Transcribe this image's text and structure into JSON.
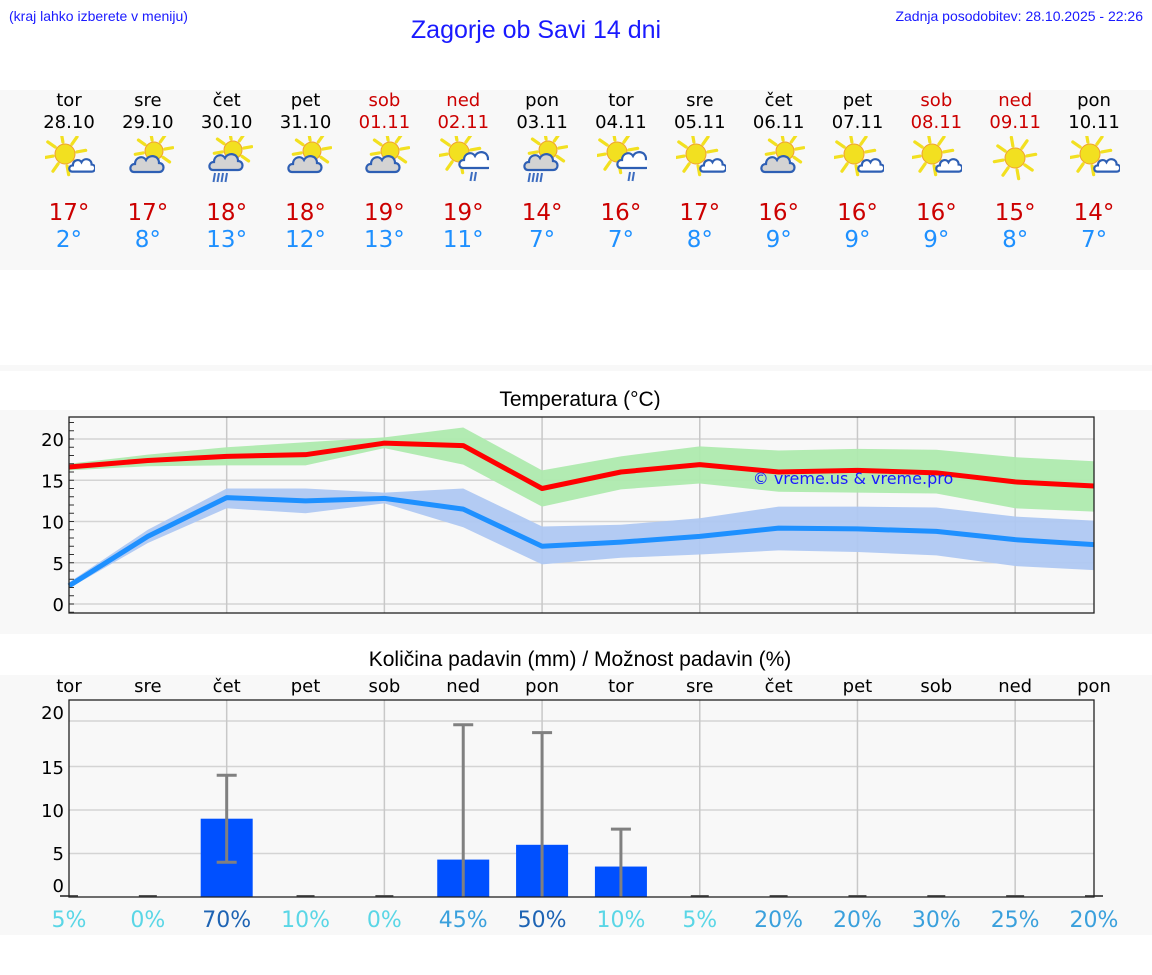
{
  "header": {
    "hint": "(kraj lahko izberete v meniju)",
    "title": "Zagorje ob Savi 14 dni",
    "updated": "Zadnja posodobitev: 28.10.2025 - 22:26"
  },
  "days": [
    {
      "name": "tor",
      "date": "28.10",
      "weekend": false,
      "icon": "sun-small-cloud-icon",
      "tmax": "17°",
      "tmin": "2°"
    },
    {
      "name": "sre",
      "date": "29.10",
      "weekend": false,
      "icon": "sun-grey-cloud-icon",
      "tmax": "17°",
      "tmin": "8°"
    },
    {
      "name": "čet",
      "date": "30.10",
      "weekend": false,
      "icon": "sun-grey-cloud-rain-icon",
      "tmax": "18°",
      "tmin": "13°"
    },
    {
      "name": "pet",
      "date": "31.10",
      "weekend": false,
      "icon": "sun-grey-cloud-icon",
      "tmax": "18°",
      "tmin": "12°"
    },
    {
      "name": "sob",
      "date": "01.11",
      "weekend": true,
      "icon": "sun-grey-cloud-icon",
      "tmax": "19°",
      "tmin": "13°"
    },
    {
      "name": "ned",
      "date": "02.11",
      "weekend": true,
      "icon": "sun-cloud-light-rain-icon",
      "tmax": "19°",
      "tmin": "11°"
    },
    {
      "name": "pon",
      "date": "03.11",
      "weekend": false,
      "icon": "sun-grey-cloud-rain-icon",
      "tmax": "14°",
      "tmin": "7°"
    },
    {
      "name": "tor",
      "date": "04.11",
      "weekend": false,
      "icon": "sun-cloud-light-rain-icon",
      "tmax": "16°",
      "tmin": "7°"
    },
    {
      "name": "sre",
      "date": "05.11",
      "weekend": false,
      "icon": "sun-small-cloud-icon",
      "tmax": "17°",
      "tmin": "8°"
    },
    {
      "name": "čet",
      "date": "06.11",
      "weekend": false,
      "icon": "sun-grey-cloud-icon",
      "tmax": "16°",
      "tmin": "9°"
    },
    {
      "name": "pet",
      "date": "07.11",
      "weekend": false,
      "icon": "sun-small-cloud-icon",
      "tmax": "16°",
      "tmin": "9°"
    },
    {
      "name": "sob",
      "date": "08.11",
      "weekend": true,
      "icon": "sun-small-cloud-icon",
      "tmax": "16°",
      "tmin": "9°"
    },
    {
      "name": "ned",
      "date": "09.11",
      "weekend": true,
      "icon": "sun-icon",
      "tmax": "15°",
      "tmin": "8°"
    },
    {
      "name": "pon",
      "date": "10.11",
      "weekend": false,
      "icon": "sun-small-cloud-icon",
      "tmax": "14°",
      "tmin": "7°"
    }
  ],
  "colors": {
    "tmax_line": "#ff0000",
    "tmax_band": "#aeeaae",
    "tmin_line": "#1e90ff",
    "tmin_band": "#afc8f2",
    "bar": "#0050ff",
    "errorbar": "#808080",
    "weekend_text": "#cc0000",
    "link_blue": "#1a1aff"
  },
  "chart_data": [
    {
      "type": "line",
      "title": "Temperatura (°C)",
      "xlabel": "",
      "ylabel": "",
      "categories": [
        "28.10",
        "29.10",
        "30.10",
        "31.10",
        "01.11",
        "02.11",
        "03.11",
        "04.11",
        "05.11",
        "06.11",
        "07.11",
        "08.11",
        "09.11",
        "10.11"
      ],
      "ylim": [
        -1,
        22.5
      ],
      "yticks": [
        0,
        5,
        10,
        15,
        20
      ],
      "grid": true,
      "watermark": "© vreme.us & vreme.pro",
      "series": [
        {
          "name": "max",
          "color": "#ff0000",
          "values": [
            16.6,
            17.4,
            17.9,
            18.1,
            19.5,
            19.2,
            14.0,
            16.0,
            16.9,
            16.0,
            16.2,
            15.9,
            14.8,
            14.3
          ],
          "band_low": [
            16.2,
            16.7,
            16.8,
            16.8,
            18.9,
            16.9,
            11.8,
            13.9,
            14.6,
            13.6,
            13.5,
            13.4,
            11.6,
            11.2
          ],
          "band_high": [
            17.0,
            18.1,
            19.0,
            19.6,
            20.2,
            21.4,
            16.2,
            17.9,
            19.1,
            18.6,
            18.8,
            18.7,
            17.8,
            17.3
          ]
        },
        {
          "name": "min",
          "color": "#1e90ff",
          "values": [
            2.2,
            8.2,
            12.9,
            12.5,
            12.8,
            11.5,
            7.0,
            7.5,
            8.2,
            9.2,
            9.1,
            8.8,
            7.8,
            7.2
          ],
          "band_low": [
            1.9,
            7.4,
            11.6,
            11.0,
            12.2,
            9.3,
            4.8,
            5.6,
            6.0,
            6.5,
            6.3,
            5.9,
            4.6,
            4.1
          ],
          "band_high": [
            2.6,
            9.0,
            14.0,
            14.0,
            13.5,
            14.0,
            9.4,
            9.6,
            10.4,
            11.8,
            11.8,
            11.7,
            10.6,
            10.1
          ]
        }
      ]
    },
    {
      "type": "bar",
      "title": "Količina padavin (mm) / Možnost padavin (%)",
      "categories": [
        "tor",
        "sre",
        "čet",
        "pet",
        "sob",
        "ned",
        "pon",
        "tor",
        "sre",
        "čet",
        "pet",
        "sob",
        "ned",
        "pon"
      ],
      "ylim": [
        0,
        21
      ],
      "yticks": [
        0,
        5,
        10,
        15,
        20
      ],
      "grid": true,
      "series": [
        {
          "name": "Količina padavin (mm)",
          "values": [
            0,
            0,
            9.0,
            0,
            0,
            4.3,
            6.0,
            3.5,
            0,
            0,
            0,
            0,
            0,
            0
          ],
          "err_low": [
            0,
            0,
            4.0,
            0,
            0,
            0,
            0,
            0,
            0,
            0,
            0,
            0,
            0,
            0
          ],
          "err_high": [
            0,
            0,
            14.0,
            0,
            0,
            19.8,
            18.9,
            7.8,
            0,
            0,
            0,
            0,
            0,
            0
          ]
        },
        {
          "name": "Možnost padavin (%)",
          "labels": [
            "5%",
            "0%",
            "70%",
            "10%",
            "0%",
            "45%",
            "50%",
            "10%",
            "5%",
            "20%",
            "20%",
            "30%",
            "25%",
            "20%"
          ],
          "values": [
            5,
            0,
            70,
            10,
            0,
            45,
            50,
            10,
            5,
            20,
            20,
            30,
            25,
            20
          ]
        }
      ]
    }
  ]
}
